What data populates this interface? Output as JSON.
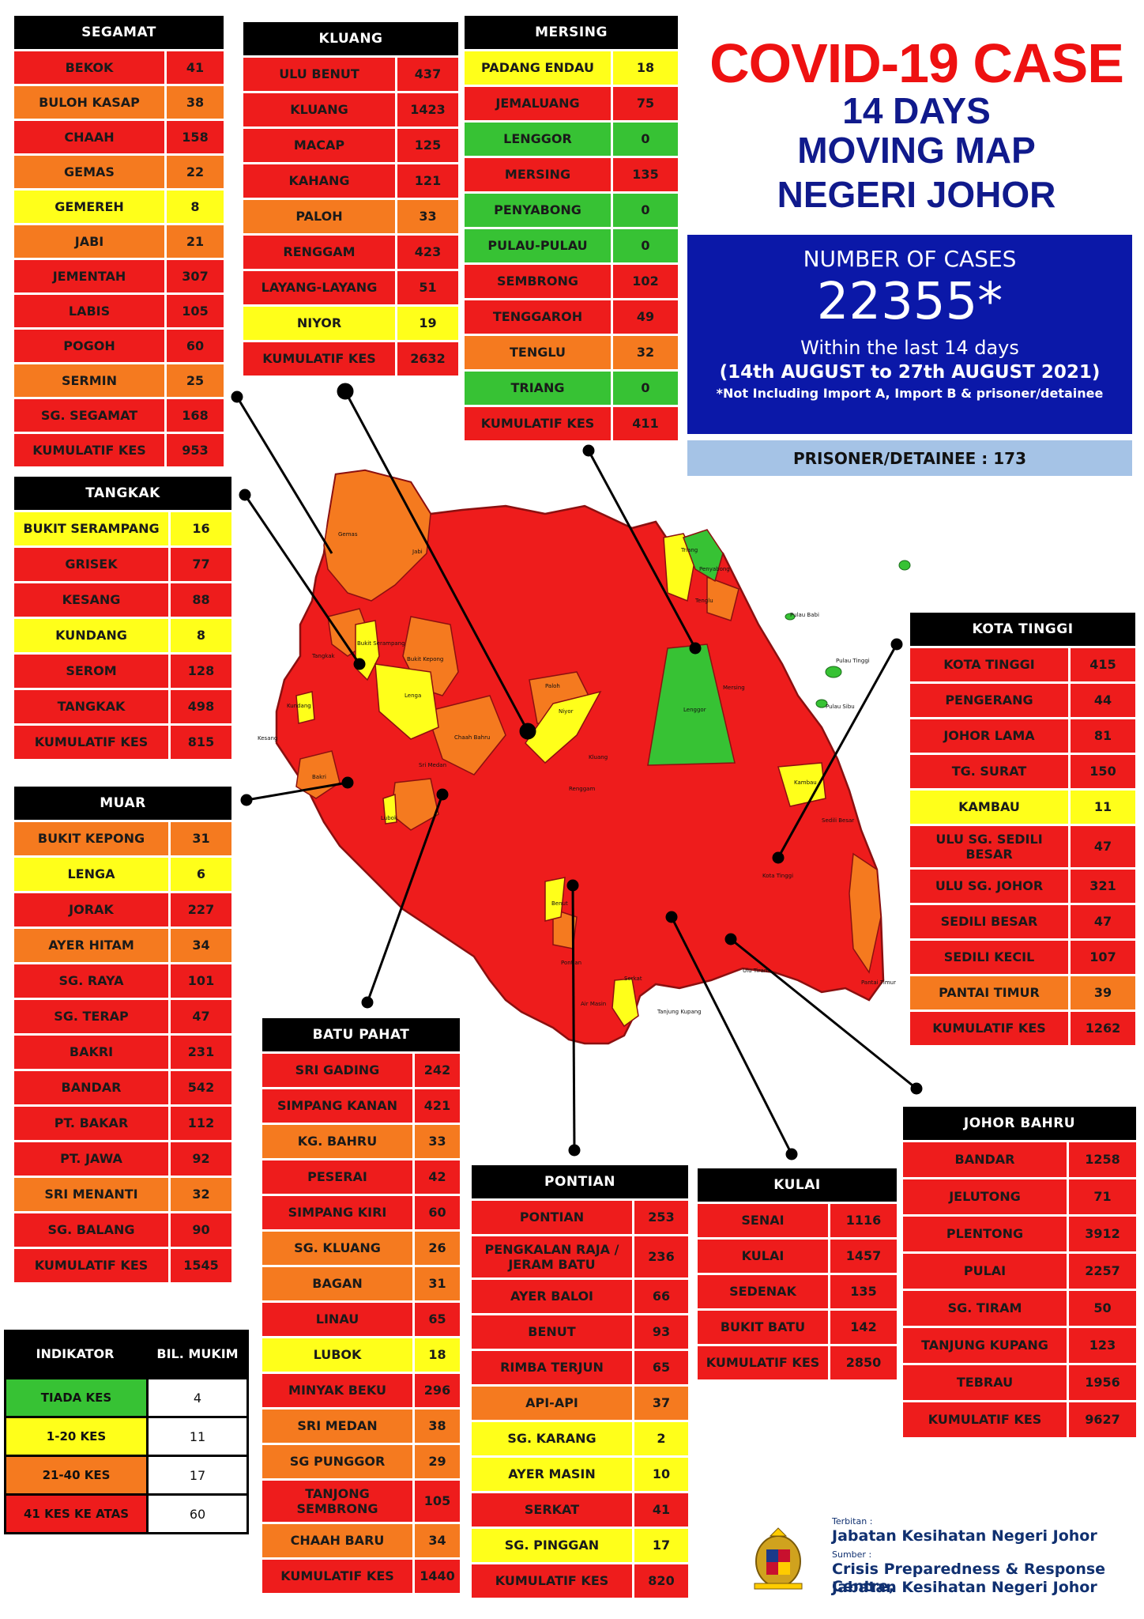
{
  "title": "COVID-19 CASE",
  "subtitle_lines": [
    "14 DAYS",
    "MOVING MAP",
    "NEGERI JOHOR"
  ],
  "summary": {
    "heading": "NUMBER OF CASES",
    "total": "22355*",
    "within": "Within the last 14 days",
    "period": "(14th AUGUST  to 27th AUGUST 2021)",
    "note": "*Not Including Import A, Import B & prisoner/detainee",
    "prisoner": "PRISONER/DETAINEE : 173"
  },
  "colors": {
    "red": "#ee1c1c",
    "orange": "#f57a1f",
    "yellow": "#ffff1a",
    "green": "#37c234",
    "title": "#ee1111",
    "navy": "#101a8c",
    "box": "#0b18a8"
  },
  "districts": {
    "segamat": {
      "name": "SEGAMAT",
      "rows": [
        {
          "n": "BEKOK",
          "v": "41",
          "c": "red"
        },
        {
          "n": "BULOH KASAP",
          "v": "38",
          "c": "orange"
        },
        {
          "n": "CHAAH",
          "v": "158",
          "c": "red"
        },
        {
          "n": "GEMAS",
          "v": "22",
          "c": "orange"
        },
        {
          "n": "GEMEREH",
          "v": "8",
          "c": "yellow"
        },
        {
          "n": "JABI",
          "v": "21",
          "c": "orange"
        },
        {
          "n": "JEMENTAH",
          "v": "307",
          "c": "red"
        },
        {
          "n": "LABIS",
          "v": "105",
          "c": "red"
        },
        {
          "n": "POGOH",
          "v": "60",
          "c": "red"
        },
        {
          "n": "SERMIN",
          "v": "25",
          "c": "orange"
        },
        {
          "n": "SG. SEGAMAT",
          "v": "168",
          "c": "red"
        },
        {
          "n": "KUMULATIF KES",
          "v": "953",
          "c": "red"
        }
      ]
    },
    "kluang": {
      "name": "KLUANG",
      "rows": [
        {
          "n": "ULU BENUT",
          "v": "437",
          "c": "red"
        },
        {
          "n": "KLUANG",
          "v": "1423",
          "c": "red"
        },
        {
          "n": "MACAP",
          "v": "125",
          "c": "red"
        },
        {
          "n": "KAHANG",
          "v": "121",
          "c": "red"
        },
        {
          "n": "PALOH",
          "v": "33",
          "c": "orange"
        },
        {
          "n": "RENGGAM",
          "v": "423",
          "c": "red"
        },
        {
          "n": "LAYANG-LAYANG",
          "v": "51",
          "c": "red"
        },
        {
          "n": "NIYOR",
          "v": "19",
          "c": "yellow"
        },
        {
          "n": "KUMULATIF KES",
          "v": "2632",
          "c": "red"
        }
      ]
    },
    "mersing": {
      "name": "MERSING",
      "rows": [
        {
          "n": "PADANG ENDAU",
          "v": "18",
          "c": "yellow"
        },
        {
          "n": "JEMALUANG",
          "v": "75",
          "c": "red"
        },
        {
          "n": "LENGGOR",
          "v": "0",
          "c": "green"
        },
        {
          "n": "MERSING",
          "v": "135",
          "c": "red"
        },
        {
          "n": "PENYABONG",
          "v": "0",
          "c": "green"
        },
        {
          "n": "PULAU-PULAU",
          "v": "0",
          "c": "green"
        },
        {
          "n": "SEMBRONG",
          "v": "102",
          "c": "red"
        },
        {
          "n": "TENGGAROH",
          "v": "49",
          "c": "red"
        },
        {
          "n": "TENGLU",
          "v": "32",
          "c": "orange"
        },
        {
          "n": "TRIANG",
          "v": "0",
          "c": "green"
        },
        {
          "n": "KUMULATIF KES",
          "v": "411",
          "c": "red"
        }
      ]
    },
    "tangkak": {
      "name": "TANGKAK",
      "rows": [
        {
          "n": "BUKIT SERAMPANG",
          "v": "16",
          "c": "yellow"
        },
        {
          "n": "GRISEK",
          "v": "77",
          "c": "red"
        },
        {
          "n": "KESANG",
          "v": "88",
          "c": "red"
        },
        {
          "n": "KUNDANG",
          "v": "8",
          "c": "yellow"
        },
        {
          "n": "SEROM",
          "v": "128",
          "c": "red"
        },
        {
          "n": "TANGKAK",
          "v": "498",
          "c": "red"
        },
        {
          "n": "KUMULATIF KES",
          "v": "815",
          "c": "red"
        }
      ]
    },
    "muar": {
      "name": "MUAR",
      "rows": [
        {
          "n": "BUKIT KEPONG",
          "v": "31",
          "c": "orange"
        },
        {
          "n": "LENGA",
          "v": "6",
          "c": "yellow"
        },
        {
          "n": "JORAK",
          "v": "227",
          "c": "red"
        },
        {
          "n": "AYER HITAM",
          "v": "34",
          "c": "orange"
        },
        {
          "n": "SG. RAYA",
          "v": "101",
          "c": "red"
        },
        {
          "n": "SG. TERAP",
          "v": "47",
          "c": "red"
        },
        {
          "n": "BAKRI",
          "v": "231",
          "c": "red"
        },
        {
          "n": "BANDAR",
          "v": "542",
          "c": "red"
        },
        {
          "n": "PT. BAKAR",
          "v": "112",
          "c": "red"
        },
        {
          "n": "PT. JAWA",
          "v": "92",
          "c": "red"
        },
        {
          "n": "SRI MENANTI",
          "v": "32",
          "c": "orange"
        },
        {
          "n": "SG. BALANG",
          "v": "90",
          "c": "red"
        },
        {
          "n": "KUMULATIF KES",
          "v": "1545",
          "c": "red"
        }
      ]
    },
    "kota_tinggi": {
      "name": "KOTA TINGGI",
      "rows": [
        {
          "n": "KOTA TINGGI",
          "v": "415",
          "c": "red"
        },
        {
          "n": "PENGERANG",
          "v": "44",
          "c": "red"
        },
        {
          "n": "JOHOR LAMA",
          "v": "81",
          "c": "red"
        },
        {
          "n": "TG. SURAT",
          "v": "150",
          "c": "red"
        },
        {
          "n": "KAMBAU",
          "v": "11",
          "c": "yellow"
        },
        {
          "n": "ULU SG. SEDILI BESAR",
          "v": "47",
          "c": "red"
        },
        {
          "n": "ULU  SG. JOHOR",
          "v": "321",
          "c": "red"
        },
        {
          "n": "SEDILI BESAR",
          "v": "47",
          "c": "red"
        },
        {
          "n": "SEDILI KECIL",
          "v": "107",
          "c": "red"
        },
        {
          "n": "PANTAI TIMUR",
          "v": "39",
          "c": "orange"
        },
        {
          "n": "KUMULATIF KES",
          "v": "1262",
          "c": "red"
        }
      ]
    },
    "batu_pahat": {
      "name": "BATU PAHAT",
      "rows": [
        {
          "n": "SRI GADING",
          "v": "242",
          "c": "red"
        },
        {
          "n": "SIMPANG KANAN",
          "v": "421",
          "c": "red"
        },
        {
          "n": "KG. BAHRU",
          "v": "33",
          "c": "orange"
        },
        {
          "n": "PESERAI",
          "v": "42",
          "c": "red"
        },
        {
          "n": "SIMPANG KIRI",
          "v": "60",
          "c": "red"
        },
        {
          "n": "SG. KLUANG",
          "v": "26",
          "c": "orange"
        },
        {
          "n": "BAGAN",
          "v": "31",
          "c": "orange"
        },
        {
          "n": "LINAU",
          "v": "65",
          "c": "red"
        },
        {
          "n": "LUBOK",
          "v": "18",
          "c": "yellow"
        },
        {
          "n": "MINYAK BEKU",
          "v": "296",
          "c": "red"
        },
        {
          "n": "SRI MEDAN",
          "v": "38",
          "c": "orange"
        },
        {
          "n": "SG PUNGGOR",
          "v": "29",
          "c": "orange"
        },
        {
          "n": "TANJONG SEMBRONG",
          "v": "105",
          "c": "red"
        },
        {
          "n": "CHAAH BARU",
          "v": "34",
          "c": "orange"
        },
        {
          "n": "KUMULATIF KES",
          "v": "1440",
          "c": "red"
        }
      ]
    },
    "pontian": {
      "name": "PONTIAN",
      "rows": [
        {
          "n": "PONTIAN",
          "v": "253",
          "c": "red"
        },
        {
          "n": "PENGKALAN RAJA / JERAM BATU",
          "v": "236",
          "c": "red"
        },
        {
          "n": "AYER BALOI",
          "v": "66",
          "c": "red"
        },
        {
          "n": "BENUT",
          "v": "93",
          "c": "red"
        },
        {
          "n": "RIMBA TERJUN",
          "v": "65",
          "c": "red"
        },
        {
          "n": "API-API",
          "v": "37",
          "c": "orange"
        },
        {
          "n": "SG. KARANG",
          "v": "2",
          "c": "yellow"
        },
        {
          "n": "AYER MASIN",
          "v": "10",
          "c": "yellow"
        },
        {
          "n": "SERKAT",
          "v": "41",
          "c": "red"
        },
        {
          "n": "SG. PINGGAN",
          "v": "17",
          "c": "yellow"
        },
        {
          "n": "KUMULATIF KES",
          "v": "820",
          "c": "red"
        }
      ]
    },
    "kulai": {
      "name": "KULAI",
      "rows": [
        {
          "n": "SENAI",
          "v": "1116",
          "c": "red"
        },
        {
          "n": "KULAI",
          "v": "1457",
          "c": "red"
        },
        {
          "n": "SEDENAK",
          "v": "135",
          "c": "red"
        },
        {
          "n": "BUKIT BATU",
          "v": "142",
          "c": "red"
        },
        {
          "n": "KUMULATIF KES",
          "v": "2850",
          "c": "red"
        }
      ]
    },
    "johor_bahru": {
      "name": "JOHOR BAHRU",
      "rows": [
        {
          "n": "BANDAR",
          "v": "1258",
          "c": "red"
        },
        {
          "n": "JELUTONG",
          "v": "71",
          "c": "red"
        },
        {
          "n": "PLENTONG",
          "v": "3912",
          "c": "red"
        },
        {
          "n": "PULAI",
          "v": "2257",
          "c": "red"
        },
        {
          "n": "SG. TIRAM",
          "v": "50",
          "c": "red"
        },
        {
          "n": "TANJUNG KUPANG",
          "v": "123",
          "c": "red"
        },
        {
          "n": "TEBRAU",
          "v": "1956",
          "c": "red"
        },
        {
          "n": "KUMULATIF KES",
          "v": "9627",
          "c": "red"
        }
      ]
    }
  },
  "legend": {
    "headers": [
      "INDIKATOR",
      "BIL. MUKIM"
    ],
    "rows": [
      {
        "n": "TIADA KES",
        "v": "4",
        "c": "green"
      },
      {
        "n": "1-20 KES",
        "v": "11",
        "c": "yellow"
      },
      {
        "n": "21-40 KES",
        "v": "17",
        "c": "orange"
      },
      {
        "n": "41 KES KE ATAS",
        "v": "60",
        "c": "red"
      }
    ]
  },
  "footer": {
    "terbitan_label": "Terbitan :",
    "terbitan": "Jabatan Kesihatan Negeri Johor",
    "sumber_label": "Sumber :",
    "sumber_1": "Crisis Preparedness & Response Centre,",
    "sumber_2": "Jabatan Kesihatan Negeri Johor"
  },
  "map_labels": {
    "gemas": "Gemas",
    "jabi": "Jabi",
    "bukit_serampang": "Bukit Serampang",
    "bukit_kepong": "Bukit Kepong",
    "lenga": "Lenga",
    "tangkak": "Tangkak",
    "kundang": "Kundang",
    "kesang": "Kesang",
    "bakri": "Bakri",
    "paloh": "Paloh",
    "niyor": "Niyor",
    "lenggor": "Lenggor",
    "triang": "Triang",
    "penyabong": "Penyabong",
    "tenglu": "Tenglu",
    "pulau_babi": "Pulau Babi",
    "pulau_tinggi": "Pulau Tinggi",
    "pulau_sibu": "Pulau Sibu",
    "kambau": "Kambau",
    "kota_tinggi": "Kota Tinggi",
    "serkat": "Serkat",
    "pontian": "Pontian",
    "pantai_timur": "Pantai Timur",
    "sedili_besar": "Sedili Besar",
    "chaah_bahru": "Chaah Bahru",
    "sri_medan": "Sri Medan",
    "lubok": "Lubok",
    "benut": "Benut",
    "renggam": "Renggam",
    "kluang": "Kluang",
    "mersing": "Mersing",
    "tanjung_kupang": "Tanjung Kupang",
    "air_masin": "Air Masin",
    "ulu_tiram": "Ulu Tiram"
  }
}
